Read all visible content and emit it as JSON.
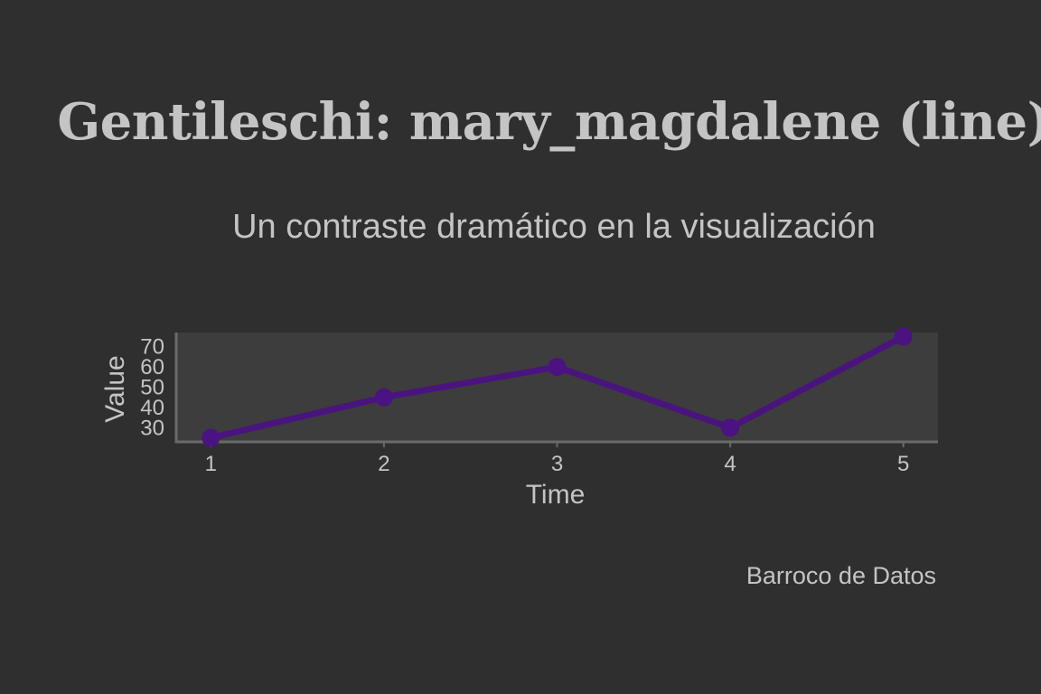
{
  "title": "Gentileschi: mary_magdalene (line)",
  "subtitle": "Un contraste dramático en la visualización",
  "caption": "Barroco de Datos",
  "colors": {
    "background": "#2f2f2f",
    "plot_background": "#3d3d3d",
    "axis": "#6a6a6a",
    "text": "#c4c4c4",
    "line": "#4b1282"
  },
  "chart_data": {
    "type": "line",
    "title": "Gentileschi: mary_magdalene (line)",
    "subtitle": "Un contraste dramático en la visualización",
    "xlabel": "Time",
    "ylabel": "Value",
    "x": [
      1,
      2,
      3,
      4,
      5
    ],
    "y": [
      25,
      45,
      60,
      30,
      75
    ],
    "xticks": [
      "1",
      "2",
      "3",
      "4",
      "5"
    ],
    "yticks": [
      "30",
      "40",
      "50",
      "60",
      "70"
    ],
    "xlim": [
      0.8,
      5.2
    ],
    "ylim": [
      23,
      77
    ],
    "grid": false,
    "markers": true
  }
}
